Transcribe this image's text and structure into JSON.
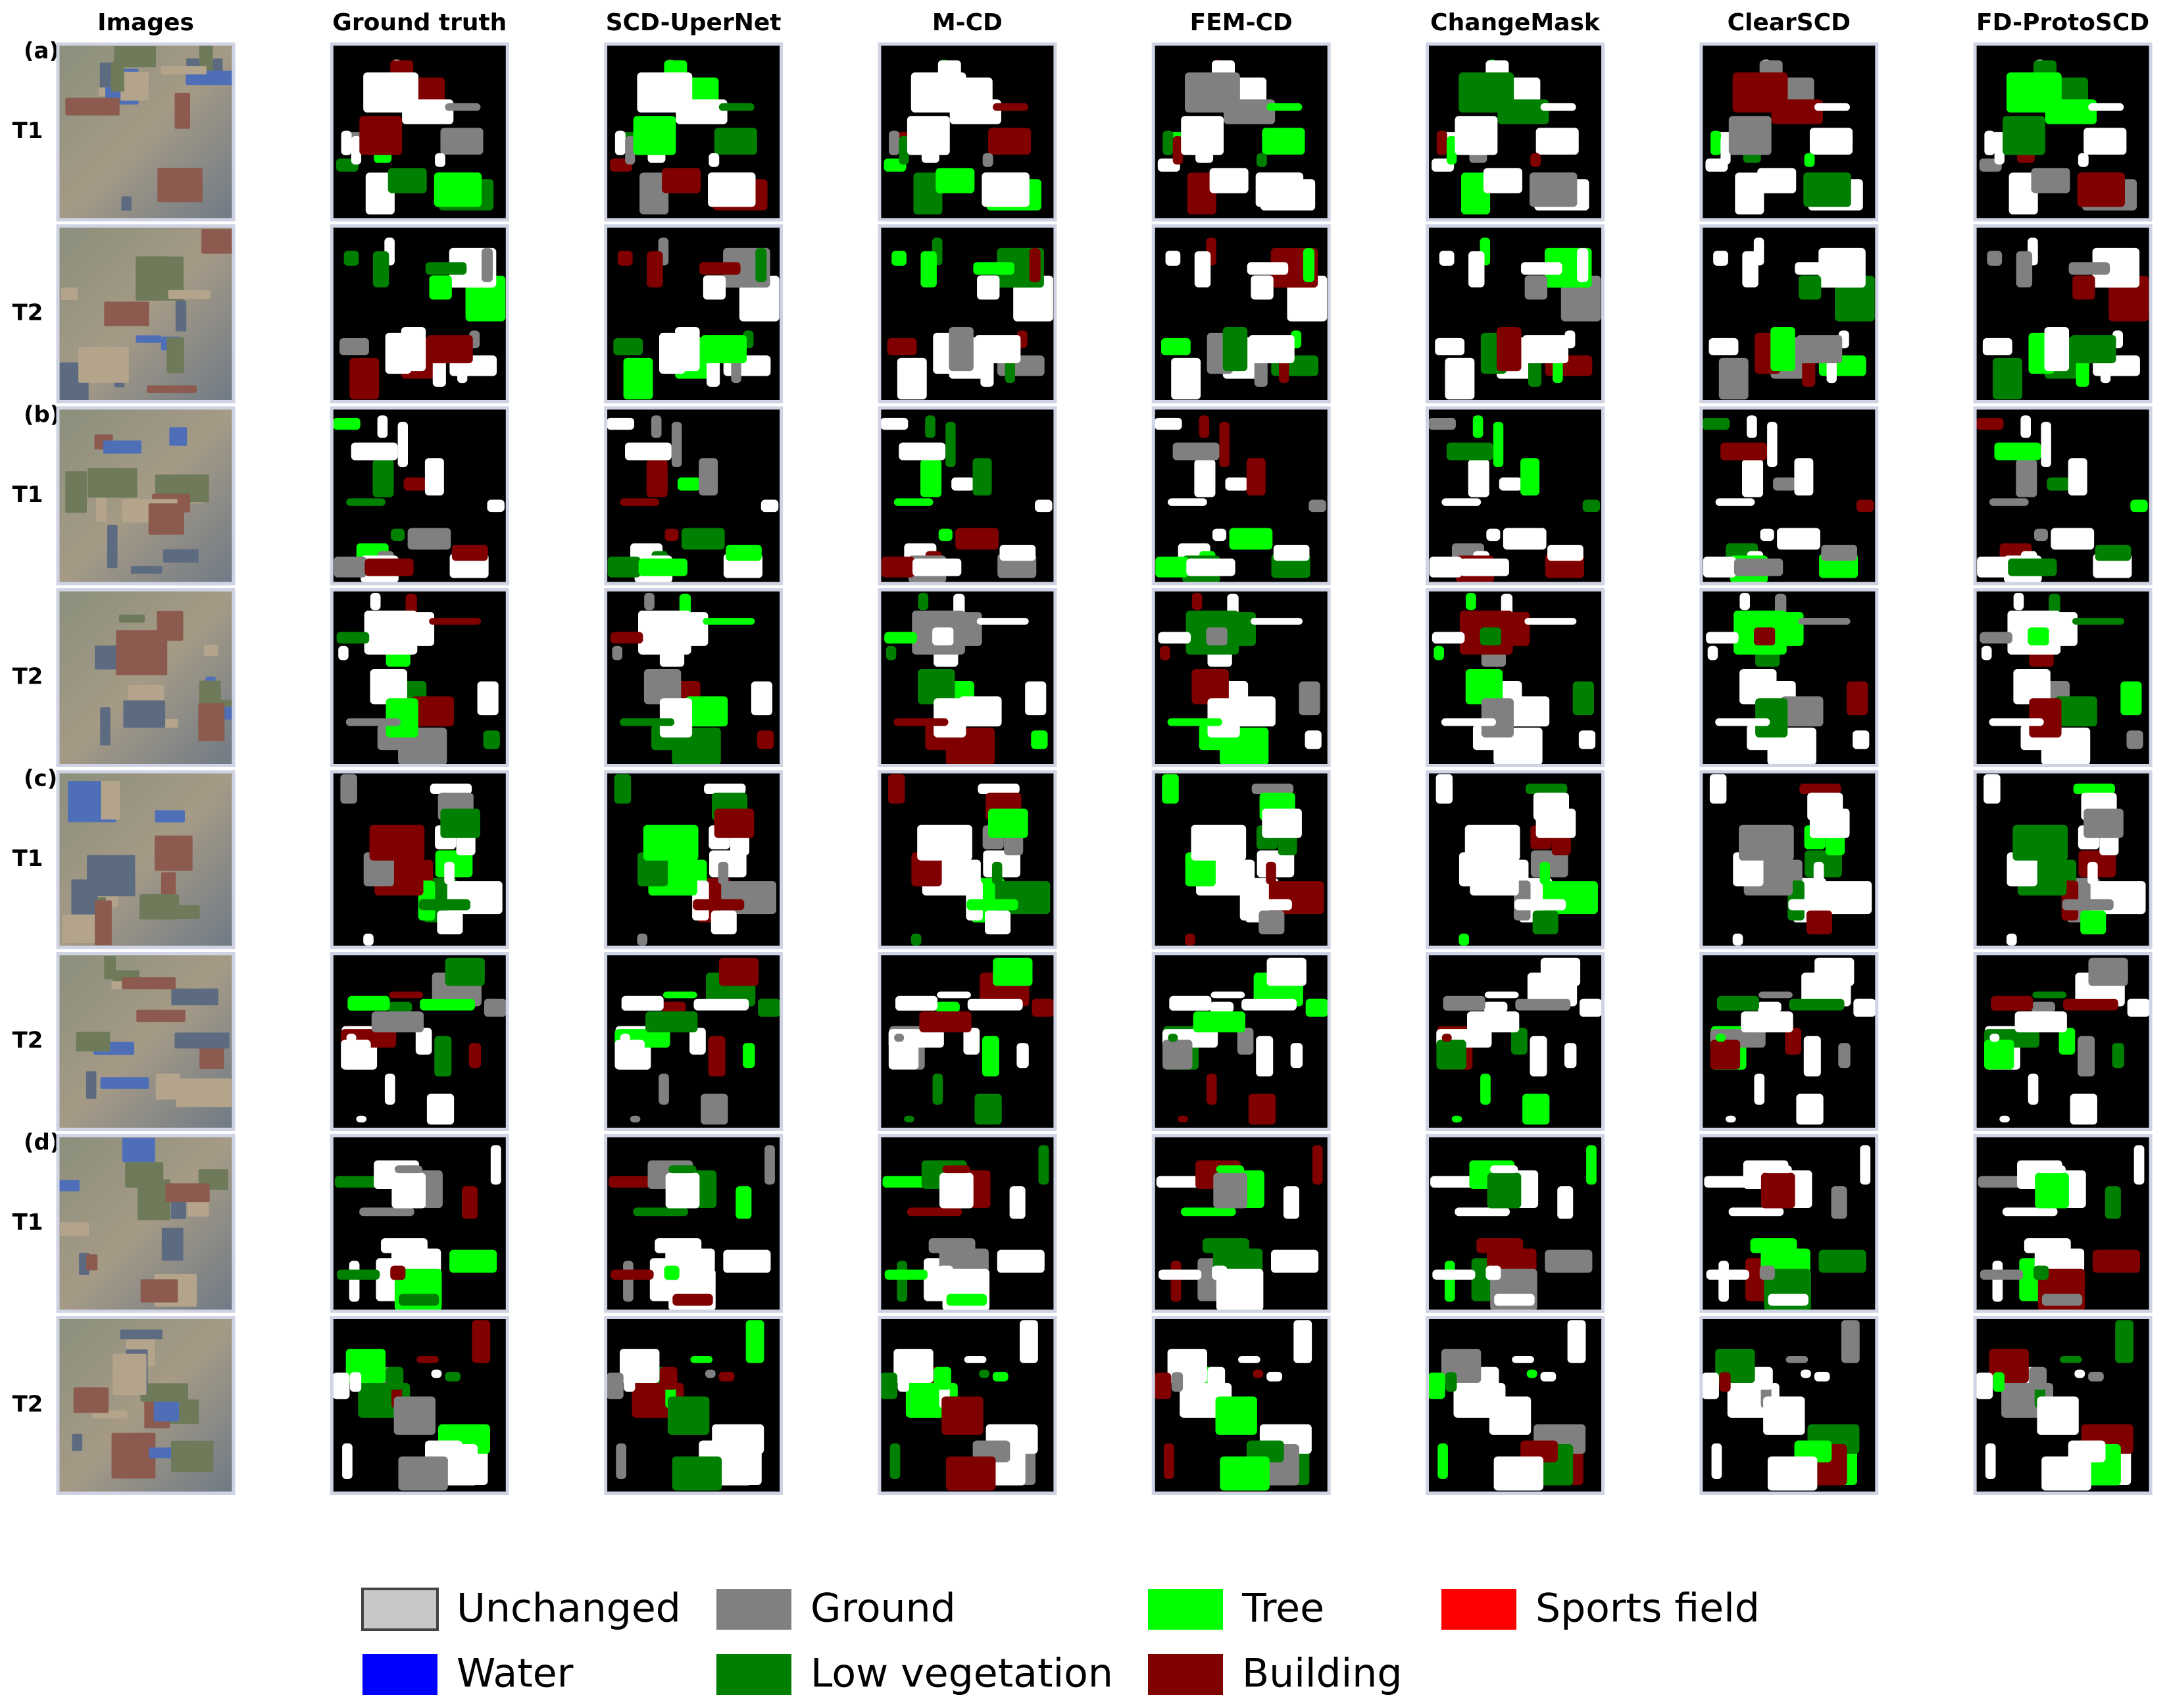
{
  "headers": [
    "Images",
    "Ground truth",
    "SCD-UperNet",
    "M-CD",
    "FEM-CD",
    "ChangeMask",
    "ClearSCD",
    "FD-ProtoSCD"
  ],
  "groups": [
    {
      "label": "(a)",
      "rows": [
        "T1",
        "T2"
      ]
    },
    {
      "label": "(b)",
      "rows": [
        "T1",
        "T2"
      ]
    },
    {
      "label": "(c)",
      "rows": [
        "T1",
        "T2"
      ]
    },
    {
      "label": "(d)",
      "rows": [
        "T1",
        "T2"
      ]
    }
  ],
  "legend": [
    {
      "label": "Unchanged",
      "color": "#c8c8c8"
    },
    {
      "label": "Ground",
      "color": "#808080"
    },
    {
      "label": "Tree",
      "color": "#00ff00"
    },
    {
      "label": "Sports field",
      "color": "#ff0000"
    },
    {
      "label": "Water",
      "color": "#0000ff"
    },
    {
      "label": "Low vegetation",
      "color": "#008000"
    },
    {
      "label": "Building",
      "color": "#800000"
    }
  ]
}
